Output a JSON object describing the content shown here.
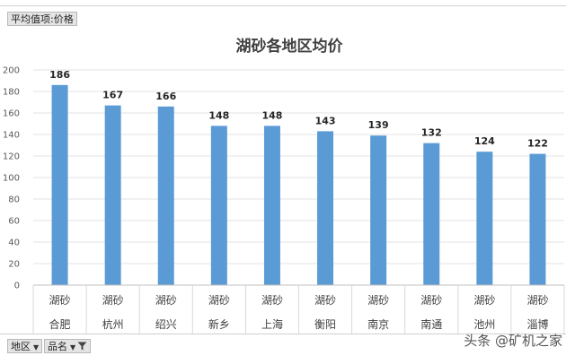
{
  "pivot": {
    "value_field_label": "平均值项:价格",
    "row_field_label": "地区",
    "column_field_label": "品名"
  },
  "watermark": "头条 @矿机之家",
  "chart_data": {
    "type": "bar",
    "title": "湖砂各地区均价",
    "categories_level1": [
      "湖砂",
      "湖砂",
      "湖砂",
      "湖砂",
      "湖砂",
      "湖砂",
      "湖砂",
      "湖砂",
      "湖砂",
      "湖砂"
    ],
    "categories_level2": [
      "合肥",
      "杭州",
      "绍兴",
      "新乡",
      "上海",
      "衡阳",
      "南京",
      "南通",
      "池州",
      "淄博"
    ],
    "values": [
      186,
      167,
      166,
      148,
      148,
      143,
      139,
      132,
      124,
      122
    ],
    "ylim": [
      0,
      200
    ],
    "yticks": [
      0,
      20,
      40,
      60,
      80,
      100,
      120,
      140,
      160,
      180,
      200
    ],
    "bar_color": "#5b9bd5",
    "grid": true,
    "legend": "none"
  }
}
